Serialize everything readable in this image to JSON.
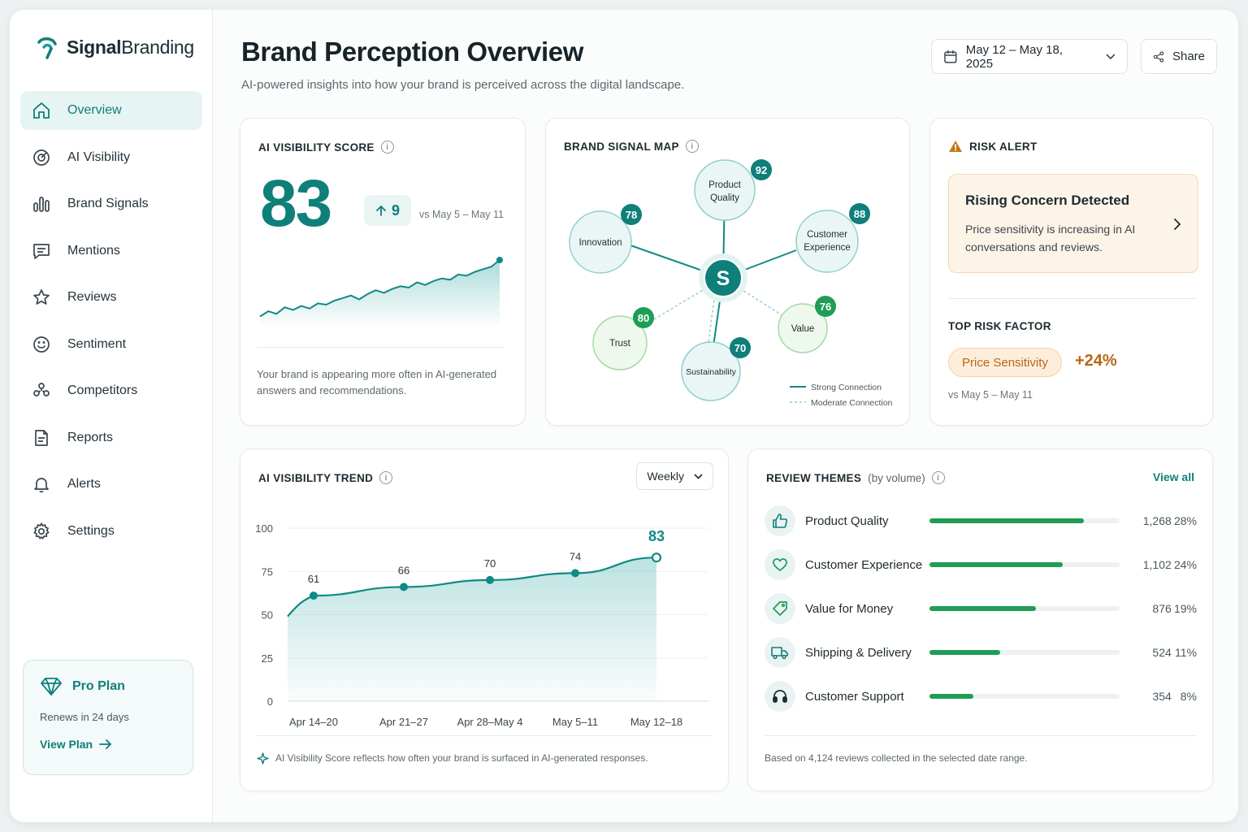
{
  "brand": {
    "name_bold": "Signal",
    "name_rest": "Branding"
  },
  "sidebar": {
    "items": [
      {
        "label": "Overview",
        "icon": "home-icon",
        "active": true
      },
      {
        "label": "AI Visibility",
        "icon": "target-icon"
      },
      {
        "label": "Brand Signals",
        "icon": "bar-chart-icon"
      },
      {
        "label": "Mentions",
        "icon": "message-icon"
      },
      {
        "label": "Reviews",
        "icon": "star-icon"
      },
      {
        "label": "Sentiment",
        "icon": "smile-icon"
      },
      {
        "label": "Competitors",
        "icon": "users-icon"
      },
      {
        "label": "Reports",
        "icon": "document-icon"
      },
      {
        "label": "Alerts",
        "icon": "bell-icon"
      },
      {
        "label": "Settings",
        "icon": "gear-icon"
      }
    ],
    "plan": {
      "title": "Pro Plan",
      "renews": "Renews in 24 days",
      "link": "View Plan"
    }
  },
  "header": {
    "title": "Brand Perception Overview",
    "subtitle": "AI-powered insights into how your brand is perceived across the digital landscape.",
    "date_range": "May 12 – May 18, 2025",
    "share": "Share"
  },
  "visibility_score": {
    "title": "AI VISIBILITY SCORE",
    "score": "83",
    "delta": "9",
    "compare": "vs May 5 – May 11",
    "note": "Your brand is appearing more often in AI-generated answers and recommendations.",
    "sparkline": [
      40,
      44,
      42,
      47,
      45,
      48,
      46,
      50,
      49,
      52,
      54,
      56,
      53,
      57,
      60,
      58,
      61,
      63,
      62,
      66,
      64,
      67,
      69,
      68,
      72,
      71,
      74,
      76,
      78,
      83
    ]
  },
  "signal_map": {
    "title": "BRAND SIGNAL MAP",
    "center": "S",
    "nodes": [
      {
        "line1": "Product",
        "line2": "Quality",
        "score": "92",
        "kind": "teal",
        "link": "strong"
      },
      {
        "line1": "Customer",
        "line2": "Experience",
        "score": "88",
        "kind": "teal",
        "link": "strong"
      },
      {
        "line1": "Innovation",
        "line2": "",
        "score": "78",
        "kind": "teal",
        "link": "strong"
      },
      {
        "line1": "Value",
        "line2": "",
        "score": "76",
        "kind": "green",
        "link": "moderate"
      },
      {
        "line1": "Sustainability",
        "line2": "",
        "score": "70",
        "kind": "teal",
        "link": "strong"
      },
      {
        "line1": "Trust",
        "line2": "",
        "score": "80",
        "kind": "green",
        "link": "moderate"
      }
    ],
    "legend_strong": "Strong Connection",
    "legend_moderate": "Moderate Connection"
  },
  "risk": {
    "title": "RISK ALERT",
    "alert_title": "Rising Concern Detected",
    "alert_body": "Price sensitivity is increasing in AI conversations and reviews.",
    "factor_title": "TOP RISK FACTOR",
    "factor": "Price Sensitivity",
    "change": "+24%",
    "compare": "vs May 5 – May 11"
  },
  "trend": {
    "title": "AI VISIBILITY TREND",
    "period": "Weekly",
    "note": "AI Visibility Score reflects how often your brand is surfaced in AI-generated responses."
  },
  "chart_data": {
    "type": "line",
    "categories": [
      "Apr 14–20",
      "Apr 21–27",
      "Apr 28–May 4",
      "May 5–11",
      "May 12–18"
    ],
    "values": [
      61,
      66,
      70,
      74,
      83
    ],
    "ylim": [
      0,
      100
    ],
    "yticks": [
      0,
      25,
      50,
      75,
      100
    ],
    "grid": true
  },
  "themes": {
    "title": "REVIEW THEMES",
    "title_suffix": "(by volume)",
    "view_all": "View all",
    "items": [
      {
        "label": "Product Quality",
        "count": "1,268",
        "pct": "28%",
        "share": 0.81,
        "icon": "thumbs-up-icon"
      },
      {
        "label": "Customer Experience",
        "count": "1,102",
        "pct": "24%",
        "share": 0.7,
        "icon": "heart-icon"
      },
      {
        "label": "Value for Money",
        "count": "876",
        "pct": "19%",
        "share": 0.56,
        "icon": "tag-icon"
      },
      {
        "label": "Shipping & Delivery",
        "count": "524",
        "pct": "11%",
        "share": 0.37,
        "icon": "truck-icon"
      },
      {
        "label": "Customer Support",
        "count": "354",
        "pct": "8%",
        "share": 0.23,
        "icon": "headset-icon"
      }
    ],
    "note": "Based on 4,124 reviews collected in the selected date range."
  },
  "colors": {
    "accent": "#0f7f7a",
    "green": "#1f9d55",
    "warning": "#b86614"
  }
}
